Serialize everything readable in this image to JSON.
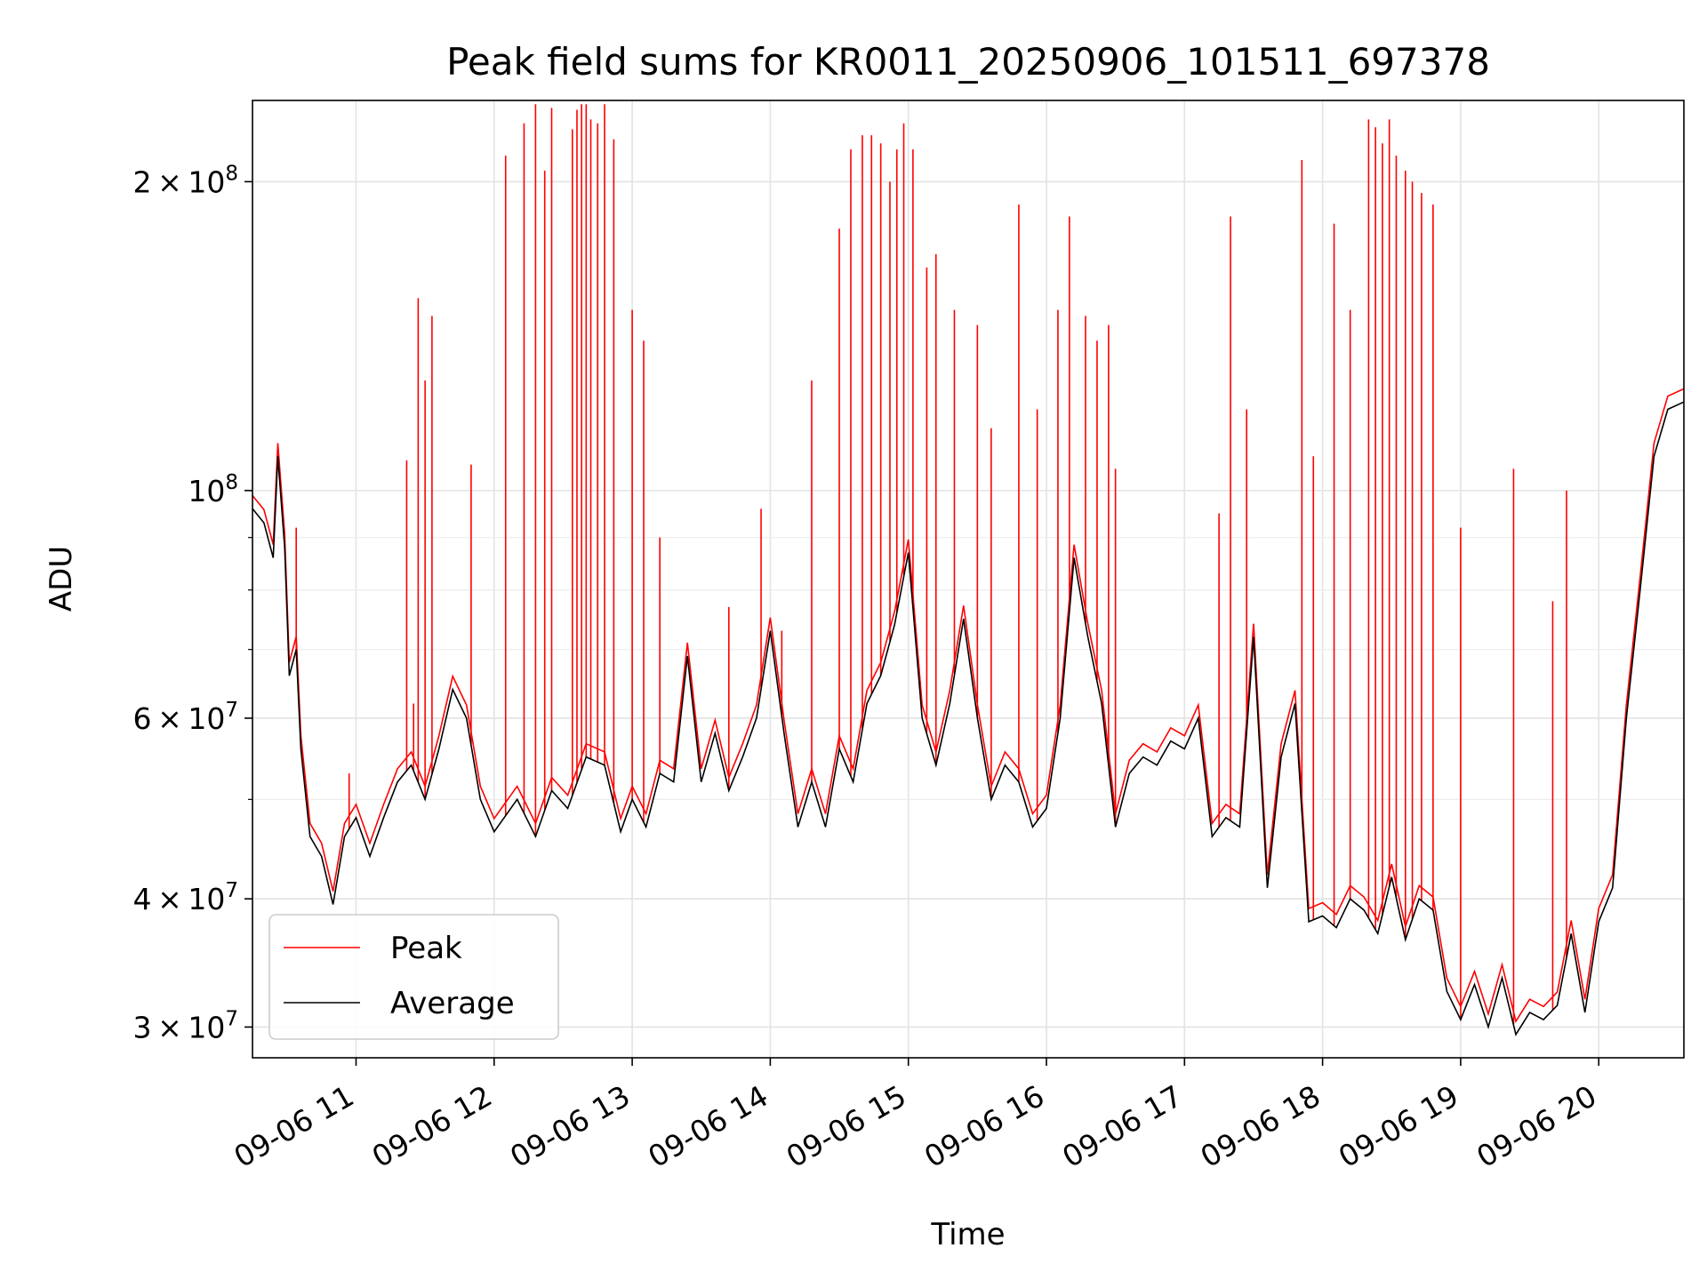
{
  "chart_data": {
    "type": "line",
    "title": "Peak field sums for KR0011_20250906_101511_697378",
    "xlabel": "Time",
    "ylabel": "ADU",
    "yscale": "log",
    "xlim": [
      "2025-09-06 10:15",
      "2025-09-06 20:37"
    ],
    "ylim": [
      28000000,
      240000000
    ],
    "grid": true,
    "legend_position": "lower-left",
    "x_ticks": [
      {
        "t": "2025-09-06 11:00",
        "label": "09-06 11"
      },
      {
        "t": "2025-09-06 12:00",
        "label": "09-06 12"
      },
      {
        "t": "2025-09-06 13:00",
        "label": "09-06 13"
      },
      {
        "t": "2025-09-06 14:00",
        "label": "09-06 14"
      },
      {
        "t": "2025-09-06 15:00",
        "label": "09-06 15"
      },
      {
        "t": "2025-09-06 16:00",
        "label": "09-06 16"
      },
      {
        "t": "2025-09-06 17:00",
        "label": "09-06 17"
      },
      {
        "t": "2025-09-06 18:00",
        "label": "09-06 18"
      },
      {
        "t": "2025-09-06 19:00",
        "label": "09-06 19"
      },
      {
        "t": "2025-09-06 20:00",
        "label": "09-06 20"
      }
    ],
    "y_major_ticks": [
      {
        "value": 30000000,
        "mantissa": "3",
        "exp": "7"
      },
      {
        "value": 40000000,
        "mantissa": "4",
        "exp": "7"
      },
      {
        "value": 60000000,
        "mantissa": "6",
        "exp": "7"
      },
      {
        "value": 100000000,
        "mantissa": "",
        "exp": "8"
      },
      {
        "value": 200000000,
        "mantissa": "2",
        "exp": "8"
      }
    ],
    "y_minor_ticks": [
      50000000,
      70000000,
      80000000,
      90000000
    ],
    "series": [
      {
        "name": "Average",
        "color": "#000000",
        "points": [
          [
            "2025-09-06 10:15",
            96000000
          ],
          [
            "2025-09-06 10:20",
            93000000
          ],
          [
            "2025-09-06 10:24",
            86000000
          ],
          [
            "2025-09-06 10:26",
            108000000
          ],
          [
            "2025-09-06 10:29",
            88000000
          ],
          [
            "2025-09-06 10:31",
            66000000
          ],
          [
            "2025-09-06 10:34",
            70000000
          ],
          [
            "2025-09-06 10:36",
            56000000
          ],
          [
            "2025-09-06 10:40",
            46000000
          ],
          [
            "2025-09-06 10:45",
            44000000
          ],
          [
            "2025-09-06 10:50",
            39500000
          ],
          [
            "2025-09-06 10:55",
            46000000
          ],
          [
            "2025-09-06 11:00",
            48000000
          ],
          [
            "2025-09-06 11:06",
            44000000
          ],
          [
            "2025-09-06 11:12",
            48000000
          ],
          [
            "2025-09-06 11:18",
            52000000
          ],
          [
            "2025-09-06 11:24",
            54000000
          ],
          [
            "2025-09-06 11:30",
            50000000
          ],
          [
            "2025-09-06 11:36",
            56000000
          ],
          [
            "2025-09-06 11:42",
            64000000
          ],
          [
            "2025-09-06 11:48",
            60000000
          ],
          [
            "2025-09-06 11:54",
            50000000
          ],
          [
            "2025-09-06 12:00",
            46500000
          ],
          [
            "2025-09-06 12:10",
            50000000
          ],
          [
            "2025-09-06 12:18",
            46000000
          ],
          [
            "2025-09-06 12:25",
            51000000
          ],
          [
            "2025-09-06 12:32",
            49000000
          ],
          [
            "2025-09-06 12:40",
            55000000
          ],
          [
            "2025-09-06 12:48",
            54000000
          ],
          [
            "2025-09-06 12:55",
            46500000
          ],
          [
            "2025-09-06 13:00",
            50000000
          ],
          [
            "2025-09-06 13:06",
            47000000
          ],
          [
            "2025-09-06 13:12",
            53000000
          ],
          [
            "2025-09-06 13:18",
            52000000
          ],
          [
            "2025-09-06 13:24",
            69000000
          ],
          [
            "2025-09-06 13:30",
            52000000
          ],
          [
            "2025-09-06 13:36",
            58000000
          ],
          [
            "2025-09-06 13:42",
            51000000
          ],
          [
            "2025-09-06 13:48",
            55000000
          ],
          [
            "2025-09-06 13:54",
            60000000
          ],
          [
            "2025-09-06 14:00",
            73000000
          ],
          [
            "2025-09-06 14:06",
            58000000
          ],
          [
            "2025-09-06 14:12",
            47000000
          ],
          [
            "2025-09-06 14:18",
            52000000
          ],
          [
            "2025-09-06 14:24",
            47000000
          ],
          [
            "2025-09-06 14:30",
            56000000
          ],
          [
            "2025-09-06 14:36",
            52000000
          ],
          [
            "2025-09-06 14:42",
            62000000
          ],
          [
            "2025-09-06 14:48",
            66000000
          ],
          [
            "2025-09-06 14:54",
            74000000
          ],
          [
            "2025-09-06 15:00",
            87000000
          ],
          [
            "2025-09-06 15:06",
            60000000
          ],
          [
            "2025-09-06 15:12",
            54000000
          ],
          [
            "2025-09-06 15:18",
            62000000
          ],
          [
            "2025-09-06 15:24",
            75000000
          ],
          [
            "2025-09-06 15:30",
            60000000
          ],
          [
            "2025-09-06 15:36",
            50000000
          ],
          [
            "2025-09-06 15:42",
            54000000
          ],
          [
            "2025-09-06 15:48",
            52000000
          ],
          [
            "2025-09-06 15:54",
            47000000
          ],
          [
            "2025-09-06 16:00",
            49000000
          ],
          [
            "2025-09-06 16:06",
            60000000
          ],
          [
            "2025-09-06 16:12",
            86000000
          ],
          [
            "2025-09-06 16:18",
            72000000
          ],
          [
            "2025-09-06 16:24",
            62000000
          ],
          [
            "2025-09-06 16:30",
            47000000
          ],
          [
            "2025-09-06 16:36",
            53000000
          ],
          [
            "2025-09-06 16:42",
            55000000
          ],
          [
            "2025-09-06 16:48",
            54000000
          ],
          [
            "2025-09-06 16:54",
            57000000
          ],
          [
            "2025-09-06 17:00",
            56000000
          ],
          [
            "2025-09-06 17:06",
            60000000
          ],
          [
            "2025-09-06 17:12",
            46000000
          ],
          [
            "2025-09-06 17:18",
            48000000
          ],
          [
            "2025-09-06 17:24",
            47000000
          ],
          [
            "2025-09-06 17:30",
            72000000
          ],
          [
            "2025-09-06 17:36",
            41000000
          ],
          [
            "2025-09-06 17:42",
            55000000
          ],
          [
            "2025-09-06 17:48",
            62000000
          ],
          [
            "2025-09-06 17:54",
            38000000
          ],
          [
            "2025-09-06 18:00",
            38500000
          ],
          [
            "2025-09-06 18:06",
            37500000
          ],
          [
            "2025-09-06 18:12",
            40000000
          ],
          [
            "2025-09-06 18:18",
            39000000
          ],
          [
            "2025-09-06 18:24",
            37000000
          ],
          [
            "2025-09-06 18:30",
            42000000
          ],
          [
            "2025-09-06 18:36",
            36500000
          ],
          [
            "2025-09-06 18:42",
            40000000
          ],
          [
            "2025-09-06 18:48",
            39000000
          ],
          [
            "2025-09-06 18:54",
            32500000
          ],
          [
            "2025-09-06 19:00",
            30500000
          ],
          [
            "2025-09-06 19:06",
            33000000
          ],
          [
            "2025-09-06 19:12",
            30000000
          ],
          [
            "2025-09-06 19:18",
            33500000
          ],
          [
            "2025-09-06 19:24",
            29500000
          ],
          [
            "2025-09-06 19:30",
            31000000
          ],
          [
            "2025-09-06 19:36",
            30500000
          ],
          [
            "2025-09-06 19:42",
            31500000
          ],
          [
            "2025-09-06 19:48",
            37000000
          ],
          [
            "2025-09-06 19:54",
            31000000
          ],
          [
            "2025-09-06 20:00",
            38000000
          ],
          [
            "2025-09-06 20:06",
            41000000
          ],
          [
            "2025-09-06 20:12",
            60000000
          ],
          [
            "2025-09-06 20:18",
            80000000
          ],
          [
            "2025-09-06 20:24",
            108000000
          ],
          [
            "2025-09-06 20:30",
            120000000
          ],
          [
            "2025-09-06 20:37",
            122000000
          ]
        ]
      },
      {
        "name": "Peak",
        "color": "#ff0000",
        "spikes": [
          [
            "2025-09-06 10:34",
            92000000
          ],
          [
            "2025-09-06 10:57",
            53000000
          ],
          [
            "2025-09-06 11:22",
            107000000
          ],
          [
            "2025-09-06 11:25",
            62000000
          ],
          [
            "2025-09-06 11:27",
            154000000
          ],
          [
            "2025-09-06 11:30",
            128000000
          ],
          [
            "2025-09-06 11:33",
            148000000
          ],
          [
            "2025-09-06 11:50",
            106000000
          ],
          [
            "2025-09-06 12:05",
            212000000
          ],
          [
            "2025-09-06 12:13",
            228000000
          ],
          [
            "2025-09-06 12:18",
            238000000
          ],
          [
            "2025-09-06 12:22",
            205000000
          ],
          [
            "2025-09-06 12:25",
            236000000
          ],
          [
            "2025-09-06 12:34",
            225000000
          ],
          [
            "2025-09-06 12:36",
            235000000
          ],
          [
            "2025-09-06 12:38",
            238000000
          ],
          [
            "2025-09-06 12:40",
            238000000
          ],
          [
            "2025-09-06 12:42",
            230000000
          ],
          [
            "2025-09-06 12:45",
            228000000
          ],
          [
            "2025-09-06 12:48",
            238000000
          ],
          [
            "2025-09-06 12:52",
            220000000
          ],
          [
            "2025-09-06 13:00",
            150000000
          ],
          [
            "2025-09-06 13:05",
            140000000
          ],
          [
            "2025-09-06 13:12",
            90000000
          ],
          [
            "2025-09-06 13:42",
            77000000
          ],
          [
            "2025-09-06 13:56",
            96000000
          ],
          [
            "2025-09-06 14:05",
            73000000
          ],
          [
            "2025-09-06 14:18",
            128000000
          ],
          [
            "2025-09-06 14:30",
            180000000
          ],
          [
            "2025-09-06 14:35",
            215000000
          ],
          [
            "2025-09-06 14:40",
            222000000
          ],
          [
            "2025-09-06 14:44",
            222000000
          ],
          [
            "2025-09-06 14:48",
            218000000
          ],
          [
            "2025-09-06 14:52",
            200000000
          ],
          [
            "2025-09-06 14:55",
            215000000
          ],
          [
            "2025-09-06 14:58",
            228000000
          ],
          [
            "2025-09-06 15:02",
            215000000
          ],
          [
            "2025-09-06 15:08",
            165000000
          ],
          [
            "2025-09-06 15:12",
            170000000
          ],
          [
            "2025-09-06 15:20",
            150000000
          ],
          [
            "2025-09-06 15:30",
            145000000
          ],
          [
            "2025-09-06 15:36",
            115000000
          ],
          [
            "2025-09-06 15:48",
            190000000
          ],
          [
            "2025-09-06 15:56",
            120000000
          ],
          [
            "2025-09-06 16:05",
            150000000
          ],
          [
            "2025-09-06 16:10",
            185000000
          ],
          [
            "2025-09-06 16:17",
            148000000
          ],
          [
            "2025-09-06 16:22",
            140000000
          ],
          [
            "2025-09-06 16:27",
            145000000
          ],
          [
            "2025-09-06 16:30",
            105000000
          ],
          [
            "2025-09-06 17:15",
            95000000
          ],
          [
            "2025-09-06 17:20",
            185000000
          ],
          [
            "2025-09-06 17:27",
            120000000
          ],
          [
            "2025-09-06 17:51",
            210000000
          ],
          [
            "2025-09-06 17:56",
            108000000
          ],
          [
            "2025-09-06 18:05",
            182000000
          ],
          [
            "2025-09-06 18:12",
            150000000
          ],
          [
            "2025-09-06 18:20",
            230000000
          ],
          [
            "2025-09-06 18:23",
            226000000
          ],
          [
            "2025-09-06 18:26",
            218000000
          ],
          [
            "2025-09-06 18:29",
            230000000
          ],
          [
            "2025-09-06 18:32",
            212000000
          ],
          [
            "2025-09-06 18:36",
            205000000
          ],
          [
            "2025-09-06 18:39",
            200000000
          ],
          [
            "2025-09-06 18:43",
            195000000
          ],
          [
            "2025-09-06 18:48",
            190000000
          ],
          [
            "2025-09-06 19:00",
            92000000
          ],
          [
            "2025-09-06 19:23",
            105000000
          ],
          [
            "2025-09-06 19:40",
            78000000
          ],
          [
            "2025-09-06 19:46",
            100000000
          ]
        ]
      }
    ]
  },
  "legend": {
    "items": [
      {
        "label": "Peak",
        "color": "#ff0000"
      },
      {
        "label": "Average",
        "color": "#000000"
      }
    ]
  }
}
